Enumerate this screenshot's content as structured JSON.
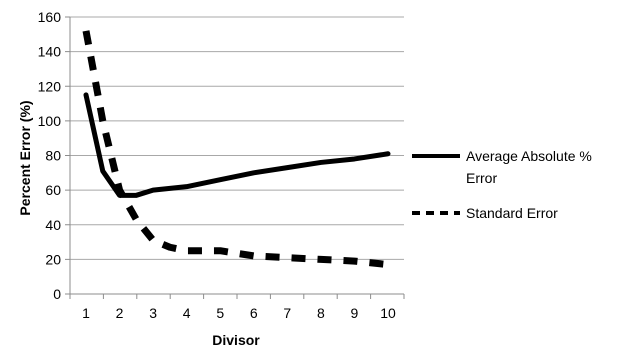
{
  "chart_data": {
    "type": "line",
    "title": "",
    "xlabel": "Divisor",
    "ylabel": "Percent Error (%)",
    "x": [
      1,
      1.5,
      2,
      2.5,
      3,
      3.5,
      4,
      5,
      6,
      7,
      8,
      9,
      10
    ],
    "ylim": [
      0,
      160
    ],
    "xlim": [
      1,
      10
    ],
    "y_ticks": [
      0,
      20,
      40,
      60,
      80,
      100,
      120,
      140,
      160
    ],
    "x_ticks": [
      1,
      2,
      3,
      4,
      5,
      6,
      7,
      8,
      9,
      10
    ],
    "grid": "horizontal",
    "legend_position": "right",
    "series": [
      {
        "name": "Average Absolute % Error",
        "style": "solid",
        "color": "#000000",
        "values": [
          115,
          71,
          57,
          57,
          60,
          61,
          62,
          66,
          70,
          73,
          76,
          78,
          81
        ]
      },
      {
        "name": "Standard Error",
        "style": "dashed",
        "color": "#000000",
        "values": [
          152,
          100,
          60,
          43,
          31,
          27,
          25,
          25,
          22,
          21,
          20,
          19,
          17
        ]
      }
    ]
  }
}
